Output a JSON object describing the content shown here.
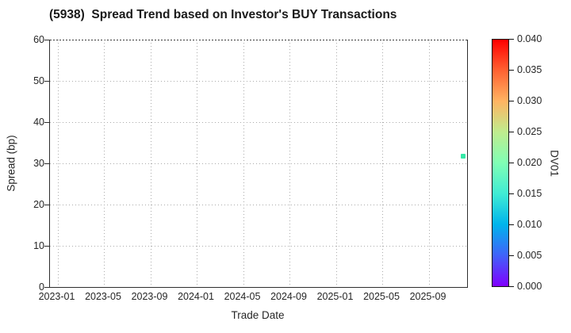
{
  "chart_data": {
    "type": "scatter",
    "title": "(5938)  Spread Trend based on Investor's BUY Transactions",
    "xlabel": "Trade Date",
    "ylabel": "Spread (bp)",
    "xlim": [
      "2022-12",
      "2025-12"
    ],
    "ylim": [
      0,
      60
    ],
    "x_ticks": [
      "2023-01",
      "2023-05",
      "2023-09",
      "2024-01",
      "2024-05",
      "2024-09",
      "2025-01",
      "2025-05",
      "2025-09"
    ],
    "y_ticks": [
      0,
      10,
      20,
      30,
      40,
      50,
      60
    ],
    "grid": true,
    "grid_style": "dotted",
    "legend_position": "none",
    "points": [
      {
        "x": "2025-12",
        "y": 31.8,
        "dv01": 0.015,
        "color": "#35e9a7"
      }
    ],
    "colorbar": {
      "label": "DV01",
      "min": 0.0,
      "max": 0.04,
      "ticks": [
        "0.000",
        "0.005",
        "0.010",
        "0.015",
        "0.020",
        "0.025",
        "0.030",
        "0.035",
        "0.040"
      ],
      "colormap": "rainbow",
      "stops": [
        "#8000ff",
        "#4062fa",
        "#00b4ec",
        "#40ecd4",
        "#80ffb5",
        "#bfec8e",
        "#ffb462",
        "#ff6232",
        "#ff0000"
      ]
    }
  }
}
